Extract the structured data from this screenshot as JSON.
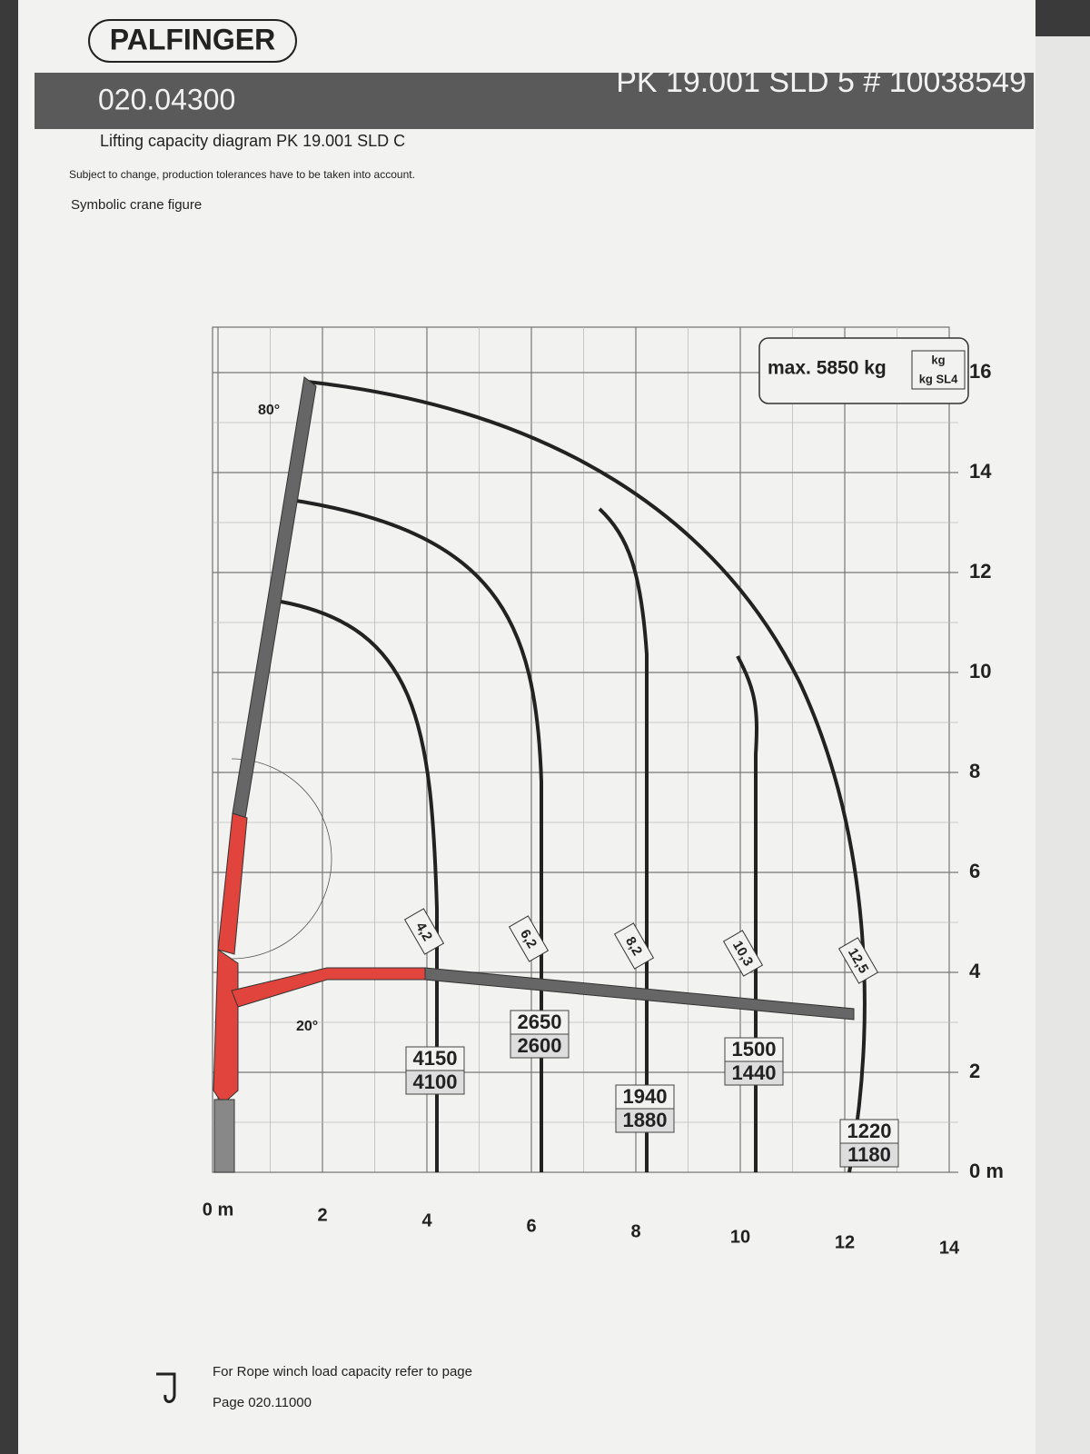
{
  "header": {
    "brand": "PALFINGER",
    "doc_number": "020.04300",
    "model_serial": "PK 19.001 SLD 5 # 10038549",
    "subtitle": "Lifting capacity diagram PK 19.001 SLD C",
    "note": "Subject to change, production tolerances have to be taken into account.",
    "figure_label": "Symbolic crane figure"
  },
  "diagram": {
    "max_label": "max. 5850 kg",
    "unit_top": "kg",
    "unit_bottom": "kg SL4",
    "angle_top": "80°",
    "angle_bottom": "20°",
    "x_labels": [
      "0 m",
      "2",
      "4",
      "6",
      "8",
      "10",
      "12",
      "14"
    ],
    "y_labels": [
      "0 m",
      "2",
      "4",
      "6",
      "8",
      "10",
      "12",
      "14",
      "16"
    ],
    "reaches": [
      {
        "reach": "4,2",
        "capacity": "4150",
        "capacity_sl4": "4100"
      },
      {
        "reach": "6,2",
        "capacity": "2650",
        "capacity_sl4": "2600"
      },
      {
        "reach": "8,2",
        "capacity": "1940",
        "capacity_sl4": "1880"
      },
      {
        "reach": "10,3",
        "capacity": "1500",
        "capacity_sl4": "1440"
      },
      {
        "reach": "12,5",
        "capacity": "1220",
        "capacity_sl4": "1180"
      }
    ]
  },
  "footer": {
    "rope_note": "For Rope winch load capacity refer to page",
    "page_ref": "Page 020.11000"
  }
}
